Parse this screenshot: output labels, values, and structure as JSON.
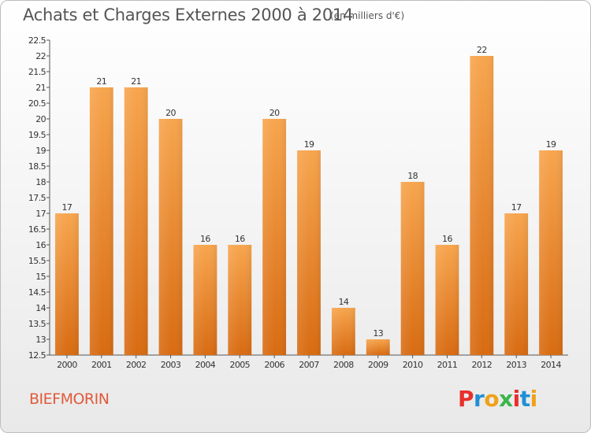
{
  "header": {
    "title": "Achats et Charges Externes 2000 à 2014",
    "subtitle": "(en milliers d'€)"
  },
  "footer": {
    "commune": "BIEFMORIN",
    "brand": "Proxiti",
    "brand_colors": [
      "#e8302b",
      "#1f8fd6",
      "#f0a11a",
      "#3bb54a",
      "#e8302b",
      "#1f8fd6",
      "#f0a11a"
    ]
  },
  "colors": {
    "bar_top": "#f7a54e",
    "bar_bottom": "#d86b12",
    "title": "#555555",
    "commune": "#e05a3b"
  },
  "chart_data": {
    "type": "bar",
    "title": "Achats et Charges Externes 2000 à 2014",
    "xlabel": "",
    "ylabel": "",
    "categories": [
      "2000",
      "2001",
      "2002",
      "2003",
      "2004",
      "2005",
      "2006",
      "2007",
      "2008",
      "2009",
      "2010",
      "2011",
      "2012",
      "2013",
      "2014"
    ],
    "values": [
      17,
      21,
      21,
      20,
      16,
      16,
      20,
      19,
      14,
      13,
      18,
      16,
      22,
      17,
      19
    ],
    "ylim": [
      12.5,
      22.5
    ],
    "yticks": [
      12.5,
      13,
      13.5,
      14,
      14.5,
      15,
      15.5,
      16,
      16.5,
      17,
      17.5,
      18,
      18.5,
      19,
      19.5,
      20,
      20.5,
      21,
      21.5,
      22,
      22.5
    ],
    "grid": false,
    "legend": "none"
  }
}
